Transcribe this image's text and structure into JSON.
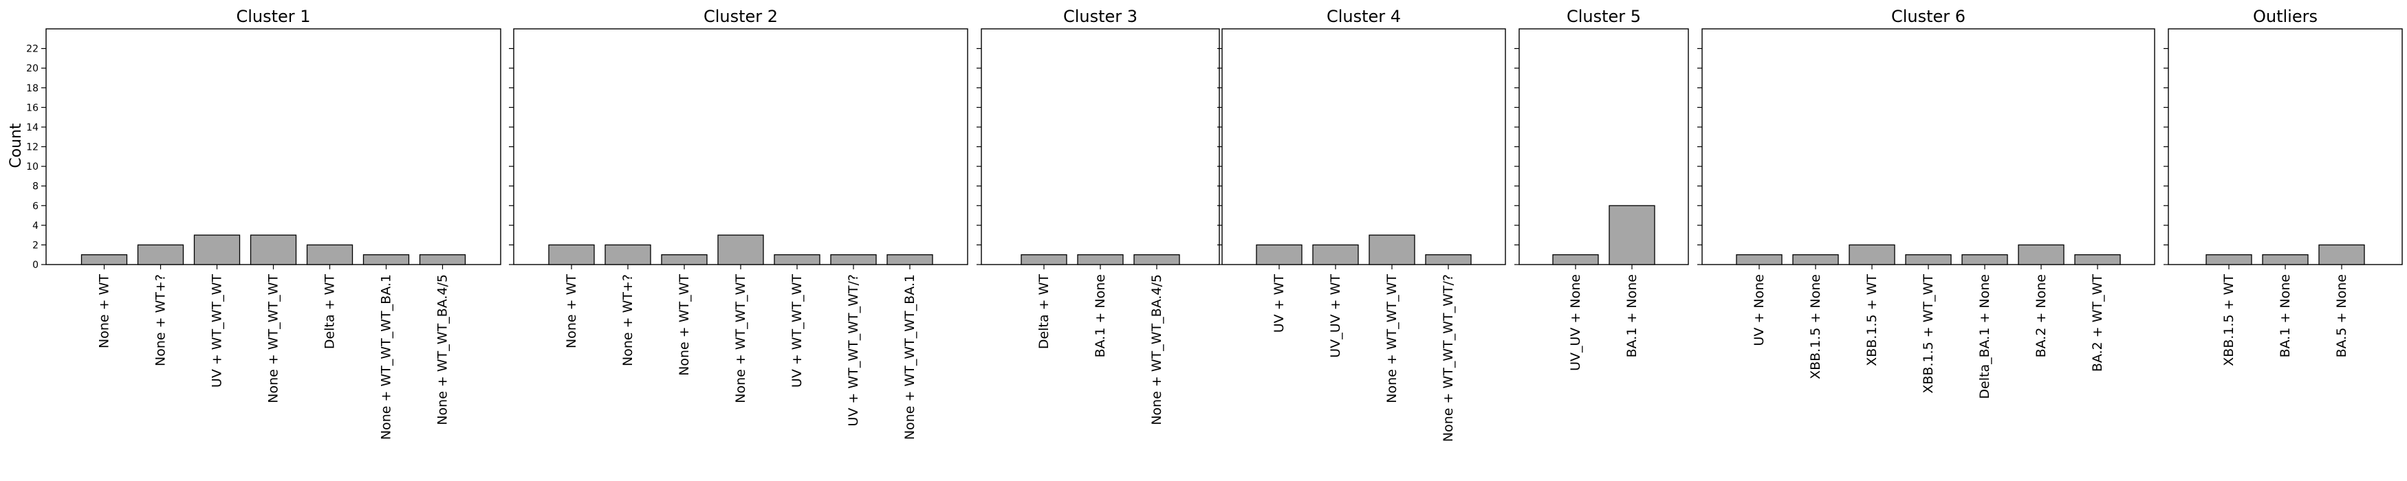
{
  "figure": {
    "ylabel": "Count",
    "yticks": [
      0,
      2,
      4,
      6,
      8,
      10,
      12,
      14,
      16,
      18,
      20,
      22
    ],
    "ylim": [
      0,
      24
    ],
    "colors": {
      "bar_fill": "#a6a6a6",
      "bar_edge": "#000000",
      "axes": "#000000"
    }
  },
  "chart_data": [
    {
      "type": "bar",
      "title": "Cluster 1",
      "categories": [
        "None + WT",
        "None + WT+?",
        "UV + WT_WT_WT",
        "None + WT_WT_WT",
        "Delta + WT",
        "None + WT_WT_WT_BA.1",
        "None + WT_WT_BA.4/5"
      ],
      "values": [
        1,
        2,
        3,
        3,
        2,
        1,
        1
      ],
      "ylabel": "Count",
      "ylim": [
        0,
        24
      ]
    },
    {
      "type": "bar",
      "title": "Cluster 2",
      "categories": [
        "None + WT",
        "None + WT+?",
        "None + WT_WT",
        "None + WT_WT_WT",
        "UV + WT_WT_WT",
        "UV + WT_WT_WT_WT/?",
        "None + WT_WT_WT_BA.1"
      ],
      "values": [
        2,
        2,
        1,
        3,
        1,
        1,
        1
      ],
      "ylim": [
        0,
        24
      ]
    },
    {
      "type": "bar",
      "title": "Cluster 3",
      "categories": [
        "Delta + WT",
        "BA.1 + None",
        "None + WT_WT_BA.4/5"
      ],
      "values": [
        1,
        1,
        1
      ],
      "ylim": [
        0,
        24
      ]
    },
    {
      "type": "bar",
      "title": "Cluster 4",
      "categories": [
        "UV + WT",
        "UV_UV + WT",
        "None + WT_WT_WT",
        "None + WT_WT_WT_WT/?"
      ],
      "values": [
        2,
        2,
        3,
        1
      ],
      "ylim": [
        0,
        24
      ]
    },
    {
      "type": "bar",
      "title": "Cluster 5",
      "categories": [
        "UV_UV + None",
        "BA.1 + None"
      ],
      "values": [
        1,
        6
      ],
      "ylim": [
        0,
        24
      ]
    },
    {
      "type": "bar",
      "title": "Cluster 6",
      "categories": [
        "UV + None",
        "XBB.1.5 + None",
        "XBB.1.5 + WT",
        "XBB.1.5 + WT_WT",
        "Delta_BA.1 + None",
        "BA.2 + None",
        "BA.2 + WT_WT"
      ],
      "values": [
        1,
        1,
        2,
        1,
        1,
        2,
        1
      ],
      "ylim": [
        0,
        24
      ]
    },
    {
      "type": "bar",
      "title": "Outliers",
      "categories": [
        "XBB.1.5 + WT",
        "BA.1 + None",
        "BA.5 + None"
      ],
      "values": [
        1,
        1,
        2
      ],
      "ylim": [
        0,
        24
      ]
    }
  ]
}
